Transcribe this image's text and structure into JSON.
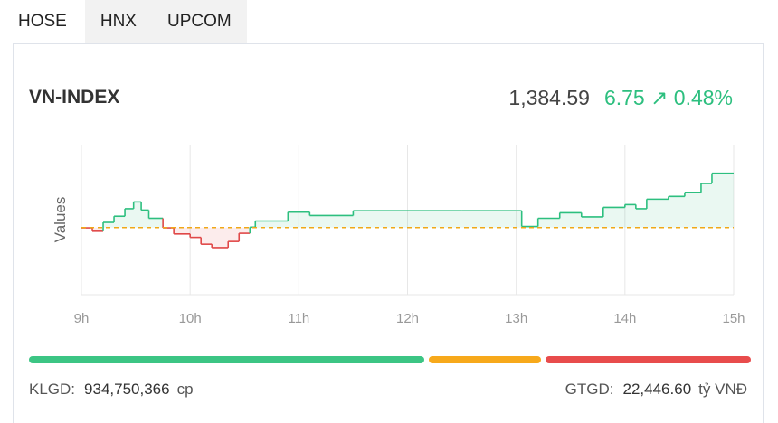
{
  "tabs": [
    {
      "label": "HOSE",
      "active": true
    },
    {
      "label": "HNX",
      "active": false
    },
    {
      "label": "UPCOM",
      "active": false
    }
  ],
  "index": {
    "name": "VN-INDEX",
    "value": "1,384.59",
    "change": "6.75",
    "arrow": "↗",
    "percent": "0.48%",
    "up_color": "#2dbf7f",
    "down_color": "#e04848"
  },
  "chart_data": {
    "type": "line",
    "ylabel": "Values",
    "x_ticks": [
      "9h",
      "10h",
      "11h",
      "12h",
      "13h",
      "14h",
      "15h"
    ],
    "reference": 1377.84,
    "ylim": [
      1368,
      1390
    ],
    "points": [
      [
        9.0,
        1377.8
      ],
      [
        9.1,
        1377.3
      ],
      [
        9.2,
        1378.6
      ],
      [
        9.3,
        1379.5
      ],
      [
        9.4,
        1380.6
      ],
      [
        9.48,
        1381.6
      ],
      [
        9.55,
        1380.4
      ],
      [
        9.62,
        1379.2
      ],
      [
        9.75,
        1377.8
      ],
      [
        9.85,
        1376.9
      ],
      [
        10.0,
        1376.4
      ],
      [
        10.1,
        1375.4
      ],
      [
        10.2,
        1374.9
      ],
      [
        10.35,
        1375.8
      ],
      [
        10.45,
        1377.0
      ],
      [
        10.55,
        1377.9
      ],
      [
        10.6,
        1378.8
      ],
      [
        10.9,
        1380.1
      ],
      [
        11.1,
        1379.6
      ],
      [
        11.5,
        1380.3
      ],
      [
        12.5,
        1380.3
      ],
      [
        13.0,
        1380.3
      ],
      [
        13.05,
        1378.0
      ],
      [
        13.2,
        1379.2
      ],
      [
        13.4,
        1380.0
      ],
      [
        13.6,
        1379.4
      ],
      [
        13.8,
        1380.8
      ],
      [
        14.0,
        1381.2
      ],
      [
        14.1,
        1380.6
      ],
      [
        14.2,
        1382.0
      ],
      [
        14.4,
        1382.4
      ],
      [
        14.55,
        1383.0
      ],
      [
        14.7,
        1384.3
      ],
      [
        14.8,
        1385.8
      ],
      [
        15.0,
        1385.8
      ]
    ]
  },
  "breadth": {
    "up_ratio": 0.555,
    "unchanged_ratio": 0.157,
    "down_ratio": 0.288,
    "up_color": "#3cc584",
    "unchanged_color": "#f7a91b",
    "down_color": "#e84c4c"
  },
  "volume": {
    "label": "KLGD:",
    "value": "934,750,366",
    "unit": "cp"
  },
  "turnover": {
    "label": "GTGD:",
    "value": "22,446.60",
    "unit": "tỷ VNĐ"
  }
}
